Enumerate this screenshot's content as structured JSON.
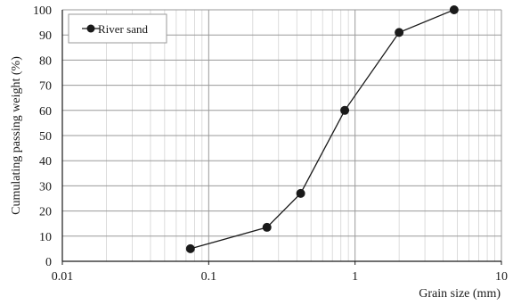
{
  "chart_data": {
    "type": "line",
    "xscale": "log",
    "xlim": [
      0.01,
      10
    ],
    "ylim": [
      0,
      100
    ],
    "xlabel": "Grain size (mm)",
    "ylabel": "Cumulating passing weight (%)",
    "x_tick_labels": [
      "0.01",
      "0.1",
      "1",
      "10"
    ],
    "y_tick_labels": [
      "0",
      "10",
      "20",
      "30",
      "40",
      "50",
      "60",
      "70",
      "80",
      "90",
      "100"
    ],
    "grid": true,
    "legend_position": "top-left",
    "series": [
      {
        "name": "River sand",
        "color": "#1a1a1a",
        "marker": "circle",
        "x": [
          0.075,
          0.25,
          0.425,
          0.85,
          2.0,
          4.75
        ],
        "y": [
          5,
          13.5,
          27,
          60,
          91,
          100
        ]
      }
    ]
  }
}
